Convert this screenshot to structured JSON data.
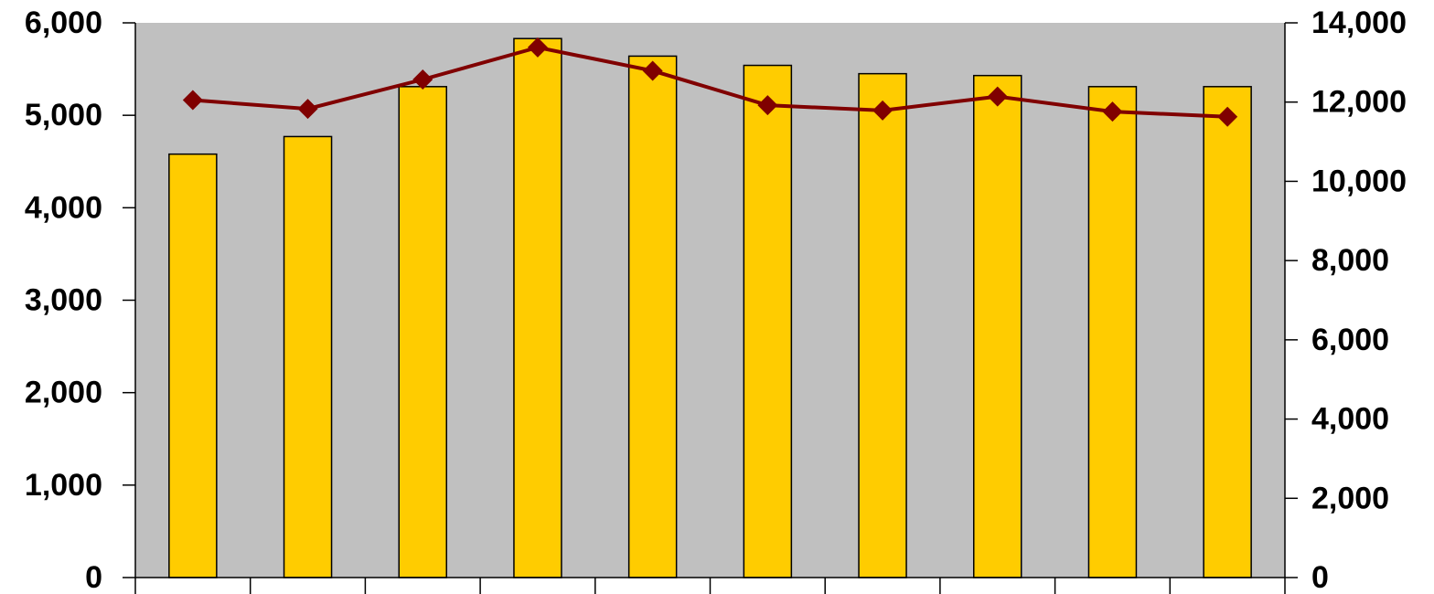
{
  "chart_data": {
    "type": "bar",
    "title": "",
    "xlabel": "",
    "ylabel": "",
    "y2label": "",
    "categories": [
      "",
      "",
      "",
      "",
      "",
      "",
      "",
      "",
      "",
      ""
    ],
    "series": [
      {
        "type": "bar",
        "axis": "left",
        "color": "#FFCC00",
        "values": [
          4580,
          4770,
          5310,
          5830,
          5640,
          5540,
          5450,
          5430,
          5310,
          5310
        ]
      },
      {
        "type": "line",
        "axis": "right",
        "color": "#800000",
        "marker": "diamond",
        "values": [
          12050,
          11830,
          12570,
          13380,
          12790,
          11920,
          11790,
          12140,
          11760,
          11630
        ]
      }
    ],
    "ylim": [
      0,
      6000
    ],
    "y2lim": [
      0,
      14000
    ],
    "yticks": [
      "0",
      "1,000",
      "2,000",
      "3,000",
      "4,000",
      "5,000",
      "6,000"
    ],
    "y2ticks": [
      "0",
      "2,000",
      "4,000",
      "6,000",
      "8,000",
      "10,000",
      "12,000",
      "14,000"
    ],
    "plot_background": "#C0C0C0",
    "grid": false,
    "legend": "none"
  }
}
